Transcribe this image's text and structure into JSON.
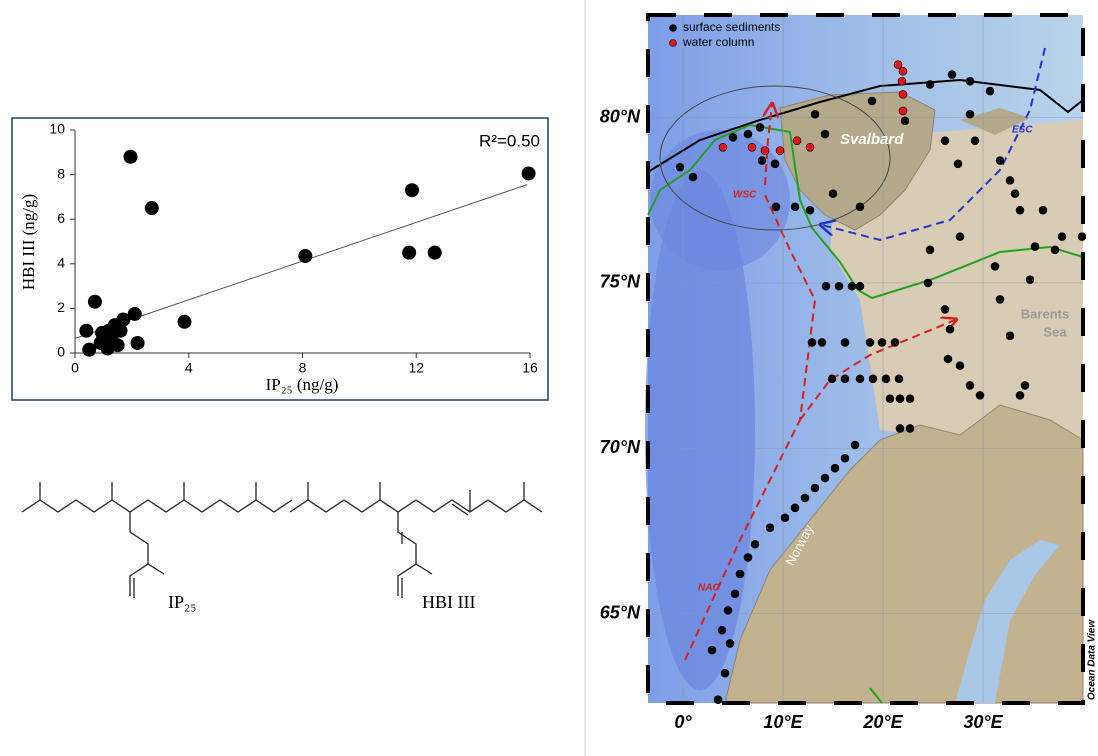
{
  "chart_data": [
    {
      "type": "scatter",
      "annotation": "R²=0.50",
      "x_label": "IP₂₅ (ng/g)",
      "y_label": "HBI III (ng/g)",
      "x": [
        0.4,
        0.7,
        1.95,
        2.7,
        0.5,
        0.9,
        1.05,
        1.15,
        1.3,
        1.4,
        1.5,
        1.6,
        1.7,
        2.1,
        2.2,
        1.2,
        0.95,
        3.85,
        8.1,
        11.75,
        11.85,
        12.65,
        15.95
      ],
      "values": [
        1.0,
        2.3,
        8.8,
        6.5,
        0.15,
        0.45,
        0.7,
        0.2,
        0.55,
        1.25,
        0.35,
        1.0,
        1.5,
        1.75,
        0.45,
        1.0,
        0.9,
        1.4,
        4.35,
        4.5,
        7.3,
        4.5,
        8.05
      ],
      "color": "#000000",
      "trendline": {
        "x": [
          0,
          15.9
        ],
        "y": [
          0.65,
          7.55
        ]
      },
      "xlim": [
        0,
        16
      ],
      "ylim": [
        0,
        10
      ],
      "xticks": [
        0,
        4,
        8,
        12,
        16
      ],
      "yticks": [
        0,
        2,
        4,
        6,
        8,
        10
      ]
    },
    {
      "type": "map",
      "series": [
        {
          "name": "surface sediments",
          "color": "#000000",
          "x": [
            -0.3,
            1.0,
            5.0,
            6.5,
            7.7,
            7.9,
            9.2,
            9.3,
            11.2,
            12.7,
            13.2,
            14.2,
            15.0,
            17.7,
            18.9,
            22.2,
            24.7,
            26.9,
            28.7,
            30.7,
            28.7,
            26.2,
            27.5,
            29.2,
            31.7,
            32.7,
            33.2,
            33.7,
            36.0,
            37.9,
            37.2,
            35.2,
            39.9,
            27.7,
            24.7,
            24.5,
            26.2,
            26.7,
            26.5,
            27.7,
            28.7,
            29.7,
            31.7,
            32.7,
            34.2,
            33.7,
            31.2,
            34.7,
            14.3,
            15.6,
            16.9,
            17.7,
            12.9,
            13.9,
            16.2,
            18.7,
            19.9,
            21.2,
            14.9,
            16.2,
            17.7,
            19.0,
            20.3,
            21.6,
            20.7,
            21.7,
            22.7,
            21.7,
            22.7,
            17.2,
            16.2,
            15.2,
            14.2,
            13.2,
            12.2,
            11.2,
            10.2,
            8.7,
            7.2,
            6.5,
            5.7,
            5.2,
            4.5,
            3.9,
            2.9,
            4.7,
            4.2,
            3.5
          ],
          "values": [
            78.5,
            78.2,
            79.4,
            79.5,
            79.7,
            78.7,
            78.6,
            77.3,
            77.3,
            77.2,
            80.1,
            79.5,
            77.7,
            77.3,
            80.5,
            79.9,
            81.0,
            81.3,
            81.1,
            80.8,
            80.1,
            79.3,
            78.6,
            79.3,
            78.7,
            78.1,
            77.7,
            77.2,
            77.2,
            76.4,
            76.0,
            76.1,
            76.4,
            76.4,
            76.0,
            75.0,
            74.2,
            73.6,
            72.7,
            72.5,
            71.9,
            71.6,
            74.5,
            73.4,
            71.9,
            71.6,
            75.5,
            75.1,
            74.9,
            74.9,
            74.9,
            74.9,
            73.2,
            73.2,
            73.2,
            73.2,
            73.2,
            73.2,
            72.1,
            72.1,
            72.1,
            72.1,
            72.1,
            72.1,
            71.5,
            71.5,
            71.5,
            70.6,
            70.6,
            70.1,
            69.7,
            69.4,
            69.1,
            68.8,
            68.5,
            68.2,
            67.9,
            67.6,
            67.1,
            66.7,
            66.2,
            65.6,
            65.1,
            64.5,
            63.9,
            64.1,
            63.2,
            62.4
          ]
        },
        {
          "name": "water column",
          "color": "#e8141b",
          "x": [
            4.0,
            6.9,
            8.2,
            9.7,
            11.4,
            12.7,
            21.5,
            21.9,
            22.0,
            22.0,
            22.0
          ],
          "values": [
            79.1,
            79.1,
            79.0,
            79.0,
            79.3,
            79.1,
            81.6,
            81.1,
            80.7,
            80.2,
            81.4
          ]
        }
      ],
      "annotations": [
        "Svalbard",
        "Barents",
        "Sea",
        "Norway",
        "WSC",
        "ESC",
        "NAC",
        "Ocean Data View"
      ],
      "xlim": [
        -3.5,
        40
      ],
      "ylim": [
        62.3,
        83.1
      ],
      "xticks": [
        {
          "value": 0,
          "label": "0°"
        },
        {
          "value": 10,
          "label": "10°E"
        },
        {
          "value": 20,
          "label": "20°E"
        },
        {
          "value": 30,
          "label": "30°E"
        }
      ],
      "yticks": [
        {
          "value": 65,
          "label": "65°N"
        },
        {
          "value": 70,
          "label": "70°N"
        },
        {
          "value": 75,
          "label": "75°N"
        },
        {
          "value": 80,
          "label": "80°N"
        }
      ],
      "grid": true
    }
  ],
  "structures": [
    {
      "label": "IP₂₅"
    },
    {
      "label": "HBI III"
    }
  ]
}
